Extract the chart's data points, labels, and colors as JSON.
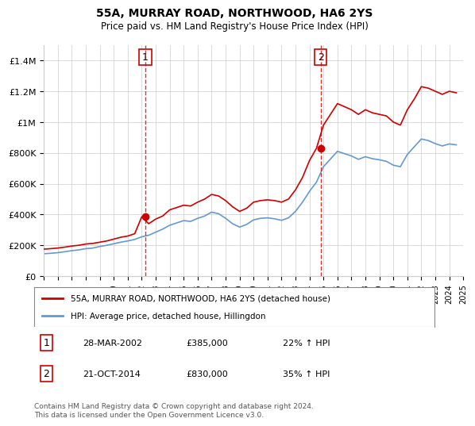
{
  "title": "55A, MURRAY ROAD, NORTHWOOD, HA6 2YS",
  "subtitle": "Price paid vs. HM Land Registry's House Price Index (HPI)",
  "legend_line1": "55A, MURRAY ROAD, NORTHWOOD, HA6 2YS (detached house)",
  "legend_line2": "HPI: Average price, detached house, Hillingdon",
  "sale1_label": "1",
  "sale1_date": "28-MAR-2002",
  "sale1_price": "£385,000",
  "sale1_hpi": "22% ↑ HPI",
  "sale2_label": "2",
  "sale2_date": "21-OCT-2014",
  "sale2_price": "£830,000",
  "sale2_hpi": "35% ↑ HPI",
  "footnote": "Contains HM Land Registry data © Crown copyright and database right 2024.\nThis data is licensed under the Open Government Licence v3.0.",
  "red_color": "#cc0000",
  "blue_color": "#6699cc",
  "sale_marker_color": "#cc0000",
  "grid_color": "#cccccc",
  "background_color": "#ffffff",
  "hpi_red_data": {
    "years": [
      1995.0,
      1995.5,
      1996.0,
      1996.5,
      1997.0,
      1997.5,
      1998.0,
      1998.5,
      1999.0,
      1999.5,
      2000.0,
      2000.5,
      2001.0,
      2001.5,
      2002.0,
      2002.5,
      2003.0,
      2003.5,
      2004.0,
      2004.5,
      2005.0,
      2005.5,
      2006.0,
      2006.5,
      2007.0,
      2007.5,
      2008.0,
      2008.5,
      2009.0,
      2009.5,
      2010.0,
      2010.5,
      2011.0,
      2011.5,
      2012.0,
      2012.5,
      2013.0,
      2013.5,
      2014.0,
      2014.5,
      2015.0,
      2015.5,
      2016.0,
      2016.5,
      2017.0,
      2017.5,
      2018.0,
      2018.5,
      2019.0,
      2019.5,
      2020.0,
      2020.5,
      2021.0,
      2021.5,
      2022.0,
      2022.5,
      2023.0,
      2023.5,
      2024.0,
      2024.5
    ],
    "values": [
      175000,
      178000,
      182000,
      188000,
      195000,
      200000,
      208000,
      212000,
      220000,
      228000,
      240000,
      252000,
      260000,
      275000,
      385000,
      340000,
      370000,
      390000,
      430000,
      445000,
      460000,
      455000,
      480000,
      500000,
      530000,
      520000,
      490000,
      450000,
      420000,
      440000,
      480000,
      490000,
      495000,
      490000,
      480000,
      500000,
      560000,
      640000,
      750000,
      830000,
      980000,
      1050000,
      1120000,
      1100000,
      1080000,
      1050000,
      1080000,
      1060000,
      1050000,
      1040000,
      1000000,
      980000,
      1080000,
      1150000,
      1230000,
      1220000,
      1200000,
      1180000,
      1200000,
      1190000
    ]
  },
  "hpi_blue_data": {
    "years": [
      1995.0,
      1995.5,
      1996.0,
      1996.5,
      1997.0,
      1997.5,
      1998.0,
      1998.5,
      1999.0,
      1999.5,
      2000.0,
      2000.5,
      2001.0,
      2001.5,
      2002.0,
      2002.5,
      2003.0,
      2003.5,
      2004.0,
      2004.5,
      2005.0,
      2005.5,
      2006.0,
      2006.5,
      2007.0,
      2007.5,
      2008.0,
      2008.5,
      2009.0,
      2009.5,
      2010.0,
      2010.5,
      2011.0,
      2011.5,
      2012.0,
      2012.5,
      2013.0,
      2013.5,
      2014.0,
      2014.5,
      2015.0,
      2015.5,
      2016.0,
      2016.5,
      2017.0,
      2017.5,
      2018.0,
      2018.5,
      2019.0,
      2019.5,
      2020.0,
      2020.5,
      2021.0,
      2021.5,
      2022.0,
      2022.5,
      2023.0,
      2023.5,
      2024.0,
      2024.5
    ],
    "values": [
      145000,
      148000,
      152000,
      158000,
      165000,
      170000,
      178000,
      182000,
      192000,
      200000,
      210000,
      220000,
      228000,
      238000,
      255000,
      265000,
      285000,
      305000,
      330000,
      345000,
      360000,
      355000,
      375000,
      390000,
      415000,
      405000,
      375000,
      340000,
      318000,
      335000,
      365000,
      375000,
      378000,
      372000,
      362000,
      378000,
      420000,
      480000,
      550000,
      610000,
      710000,
      760000,
      810000,
      795000,
      780000,
      758000,
      775000,
      762000,
      755000,
      745000,
      720000,
      710000,
      790000,
      840000,
      890000,
      880000,
      860000,
      845000,
      858000,
      852000
    ]
  },
  "sale1_year": 2002.25,
  "sale1_value": 385000,
  "sale2_year": 2014.8,
  "sale2_value": 830000,
  "vline1_year": 2002.25,
  "vline2_year": 2014.8,
  "ylim": [
    0,
    1500000
  ],
  "xlim_start": 1995,
  "xlim_end": 2025,
  "yticks": [
    0,
    200000,
    400000,
    600000,
    800000,
    1000000,
    1200000,
    1400000
  ],
  "ytick_labels": [
    "£0",
    "£200K",
    "£400K",
    "£600K",
    "£800K",
    "£1M",
    "£1.2M",
    "£1.4M"
  ],
  "xticks": [
    1995,
    1996,
    1997,
    1998,
    1999,
    2000,
    2001,
    2002,
    2003,
    2004,
    2005,
    2006,
    2007,
    2008,
    2009,
    2010,
    2011,
    2012,
    2013,
    2014,
    2015,
    2016,
    2017,
    2018,
    2019,
    2020,
    2021,
    2022,
    2023,
    2024,
    2025
  ]
}
